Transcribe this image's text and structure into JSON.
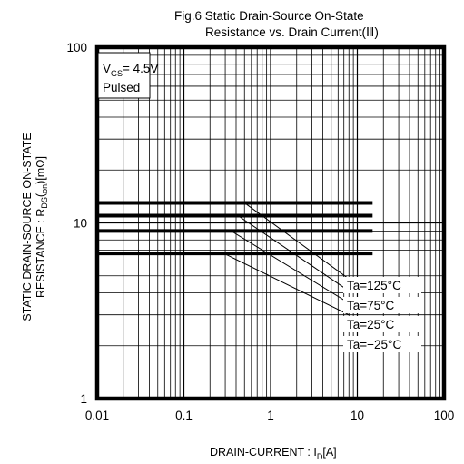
{
  "chart_data": {
    "type": "line",
    "title_line1": "Fig.6  Static Drain-Source On-State",
    "title_line2": "Resistance vs. Drain Current(Ⅲ)",
    "xlabel": {
      "main": "DRAIN-CURRENT : I",
      "sub": "D",
      "unit": "[A]"
    },
    "ylabel": {
      "line1": "STATIC DRAIN-SOURCE ON-STATE",
      "line2_pre": "RESISTANCE : R",
      "line2_sub1": "DS",
      "line2_paren_open": "(",
      "line2_sub2": "on",
      "line2_post": ")[mΩ]"
    },
    "x_scale": "log",
    "y_scale": "log",
    "xlim": [
      0.01,
      100
    ],
    "ylim": [
      1,
      100
    ],
    "x_ticks": [
      {
        "v": 0.01,
        "label": "0.01"
      },
      {
        "v": 0.1,
        "label": "0.1"
      },
      {
        "v": 1,
        "label": "1"
      },
      {
        "v": 10,
        "label": "10"
      },
      {
        "v": 100,
        "label": "100"
      }
    ],
    "y_ticks": [
      {
        "v": 1,
        "label": "1"
      },
      {
        "v": 10,
        "label": "10"
      },
      {
        "v": 100,
        "label": "100"
      }
    ],
    "grid": true,
    "conditions": {
      "vgs_pre": "V",
      "vgs_sub": "GS",
      "vgs_post": "= 4.5V",
      "pulse": "Pulsed"
    },
    "series": [
      {
        "name": "Ta=125°C",
        "x": [
          0.01,
          15
        ],
        "y": [
          13,
          13
        ]
      },
      {
        "name": "Ta=75°C",
        "x": [
          0.01,
          15
        ],
        "y": [
          11,
          11
        ]
      },
      {
        "name": "Ta=25°C",
        "x": [
          0.01,
          15
        ],
        "y": [
          9,
          9
        ]
      },
      {
        "name": "Ta=−25°C",
        "x": [
          0.01,
          15
        ],
        "y": [
          6.7,
          6.7
        ]
      }
    ],
    "leaders": [
      {
        "x": [
          0.5,
          8
        ],
        "y": [
          13,
          4.8
        ]
      },
      {
        "x": [
          0.42,
          8
        ],
        "y": [
          11,
          4.1
        ]
      },
      {
        "x": [
          0.35,
          8
        ],
        "y": [
          9,
          3.5
        ]
      },
      {
        "x": [
          0.29,
          8
        ],
        "y": [
          6.7,
          3.0
        ]
      }
    ],
    "legend_placement": "bottom-right"
  }
}
